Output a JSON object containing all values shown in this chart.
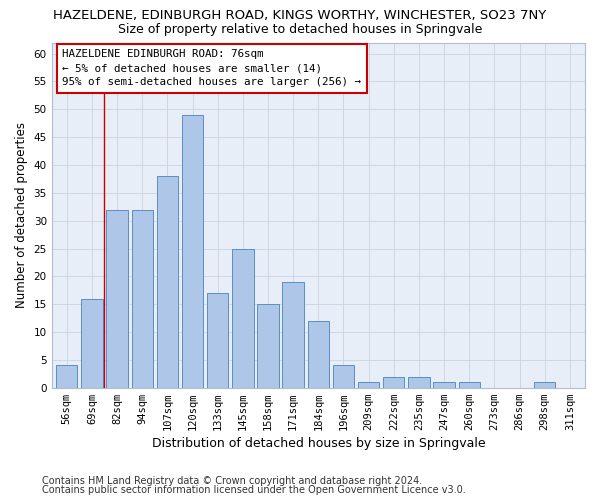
{
  "title": "HAZELDENE, EDINBURGH ROAD, KINGS WORTHY, WINCHESTER, SO23 7NY",
  "subtitle": "Size of property relative to detached houses in Springvale",
  "xlabel": "Distribution of detached houses by size in Springvale",
  "ylabel": "Number of detached properties",
  "categories": [
    "56sqm",
    "69sqm",
    "82sqm",
    "94sqm",
    "107sqm",
    "120sqm",
    "133sqm",
    "145sqm",
    "158sqm",
    "171sqm",
    "184sqm",
    "196sqm",
    "209sqm",
    "222sqm",
    "235sqm",
    "247sqm",
    "260sqm",
    "273sqm",
    "286sqm",
    "298sqm",
    "311sqm"
  ],
  "values": [
    4,
    16,
    32,
    32,
    38,
    49,
    17,
    25,
    15,
    19,
    12,
    4,
    1,
    2,
    2,
    1,
    1,
    0,
    0,
    1,
    0
  ],
  "bar_color": "#aec6e8",
  "bar_edge_color": "#5a8fc2",
  "ylim": [
    0,
    62
  ],
  "yticks": [
    0,
    5,
    10,
    15,
    20,
    25,
    30,
    35,
    40,
    45,
    50,
    55,
    60
  ],
  "annotation_text": "HAZELDENE EDINBURGH ROAD: 76sqm\n← 5% of detached houses are smaller (14)\n95% of semi-detached houses are larger (256) →",
  "annotation_box_color": "#ffffff",
  "annotation_box_edge": "#cc0000",
  "red_line_x": 1.5,
  "footer1": "Contains HM Land Registry data © Crown copyright and database right 2024.",
  "footer2": "Contains public sector information licensed under the Open Government Licence v3.0.",
  "grid_color": "#c8d4e0",
  "plot_background_color": "#e8eef8",
  "title_fontsize": 9.5,
  "subtitle_fontsize": 9,
  "xlabel_fontsize": 9,
  "ylabel_fontsize": 8.5,
  "tick_fontsize": 7.5,
  "annotation_fontsize": 7.8,
  "footer_fontsize": 7
}
